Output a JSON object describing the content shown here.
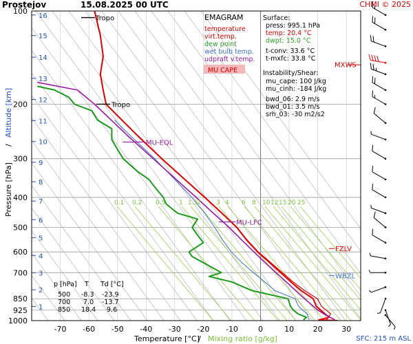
{
  "header": {
    "station": "Prostejov",
    "datetime": "15.08.2025 00 UTC",
    "credit": "CHMI © 2025"
  },
  "axes": {
    "xlabel_temp": "Temperature [°C]",
    "xlabel_sep": "/",
    "xlabel_mix": "Mixing ratio [g/kg]",
    "ylabel_pres": "Pressure [hPa]",
    "ylabel_sep": "/",
    "ylabel_alt": "Altitude [km]",
    "sfc_note": "SFC: 215 m ASL"
  },
  "legend": {
    "title": "EMAGRAM",
    "items": [
      {
        "label": "temperature",
        "color": "#e00000"
      },
      {
        "label": "virt.temp.",
        "color": "#e00000"
      },
      {
        "label": "dew point",
        "color": "#2a9d2a"
      },
      {
        "label": "wet bulb temp.",
        "color": "#3c6fd0"
      },
      {
        "label": "udpraft v.temp.",
        "color": "#9b18a3"
      }
    ],
    "mu_cape_label": "MU CAPE"
  },
  "info": {
    "surface_title": "Surface:",
    "press": "press: 995.1 hPa",
    "temp": "temp: 20.4 °C",
    "dwpt": "dwpt: 15.0 °C",
    "tconv": "t-conv: 33.6 °C",
    "tmxfc": "t-mxfc: 33.8 °C",
    "instab_title": "Instability/Shear:",
    "mu_cape": "mu_cape: 100 J/kg",
    "mu_cinh": "mu_cinh: -184 J/kg",
    "bwd_06": "bwd_06: 2.9 m/s",
    "bwd_01": "bwd_01: 3.5 m/s",
    "srh_03": "srh_03: -30 m2/s2"
  },
  "level_table": {
    "headers": [
      "p [hPa]",
      "T",
      "Td [°C]"
    ],
    "rows": [
      [
        "500",
        "-8.3",
        "-23.9"
      ],
      [
        "700",
        "7.0",
        "-13.7"
      ],
      [
        "850",
        "18.4",
        "9.6"
      ]
    ]
  },
  "markers": {
    "tropo_upper": "Tropo",
    "tropo_lower": "Tropo",
    "mu_eql": "MU-EQL",
    "mu_lfc": "MU-LFC",
    "mxws": "MXWS",
    "fzlv": "FZLV",
    "wbzl": "WBZL"
  },
  "colors": {
    "temperature": "#e00000",
    "dewpoint": "#1a9a1a",
    "wetbulb": "#3c6fd0",
    "parcel": "#9b18a3",
    "mixing": "#9ccf4a",
    "isotherm": "#b5b5b5",
    "altitude": "#1f4fc0"
  },
  "chart_data": {
    "type": "line",
    "xlabel": "Temperature [°C] / Mixing ratio [g/kg]",
    "ylabel": "Pressure [hPa] / Altitude [km]",
    "x_ticks": [
      -70,
      -60,
      -50,
      -40,
      -30,
      -20,
      -10,
      0,
      10,
      20,
      30
    ],
    "x_range": [
      -80,
      35
    ],
    "y_scale": "log",
    "y_range": [
      1000,
      100
    ],
    "y_ticks": [
      100,
      200,
      300,
      400,
      500,
      600,
      700,
      850,
      925,
      1000
    ],
    "altitude_ticks_km": [
      1,
      2,
      3,
      4,
      5,
      6,
      7,
      8,
      9,
      10,
      11,
      12,
      13,
      14,
      15,
      16
    ],
    "altitude_tick_pressures": [
      900,
      795,
      701,
      616,
      540,
      472,
      411,
      356,
      308,
      264,
      226,
      193,
      165,
      141,
      120,
      103
    ],
    "mixing_ratio_labels": [
      "0.1",
      "0.2",
      "0.5",
      "1",
      "1.5",
      "2",
      "3",
      "4",
      "6",
      "8",
      "10",
      "12",
      "15",
      "20",
      "25"
    ],
    "mixing_ratio_values": [
      0.1,
      0.2,
      0.5,
      1,
      1.5,
      2,
      3,
      4,
      6,
      8,
      10,
      12,
      15,
      20,
      25
    ],
    "series": [
      {
        "name": "temperature",
        "points": [
          [
            1000,
            27
          ],
          [
            995,
            20.4
          ],
          [
            975,
            24
          ],
          [
            950,
            22.5
          ],
          [
            925,
            21
          ],
          [
            900,
            19.5
          ],
          [
            850,
            18.4
          ],
          [
            800,
            14.2
          ],
          [
            750,
            10.6
          ],
          [
            700,
            7.0
          ],
          [
            650,
            3.2
          ],
          [
            600,
            -1
          ],
          [
            550,
            -4.8
          ],
          [
            500,
            -8.3
          ],
          [
            450,
            -13.5
          ],
          [
            400,
            -19.5
          ],
          [
            350,
            -26.5
          ],
          [
            300,
            -34.5
          ],
          [
            250,
            -43.5
          ],
          [
            200,
            -54
          ],
          [
            180,
            -55
          ],
          [
            160,
            -56
          ],
          [
            140,
            -55
          ],
          [
            120,
            -56
          ],
          [
            100,
            -58
          ]
        ]
      },
      {
        "name": "virt.temp.",
        "points": [
          [
            995,
            23
          ],
          [
            950,
            24.5
          ],
          [
            925,
            23
          ],
          [
            900,
            21.3
          ],
          [
            850,
            19.9
          ],
          [
            800,
            15.4
          ],
          [
            750,
            11.4
          ],
          [
            700,
            7.6
          ],
          [
            650,
            3.6
          ],
          [
            600,
            -0.8
          ],
          [
            550,
            -4.6
          ],
          [
            500,
            -8.2
          ],
          [
            450,
            -13.4
          ],
          [
            400,
            -19.4
          ],
          [
            350,
            -26.4
          ],
          [
            300,
            -34.4
          ],
          [
            250,
            -43.4
          ],
          [
            200,
            -54
          ],
          [
            180,
            -55
          ],
          [
            160,
            -56
          ],
          [
            140,
            -55
          ],
          [
            120,
            -56
          ],
          [
            100,
            -58
          ]
        ]
      },
      {
        "name": "dew point",
        "points": [
          [
            995,
            15
          ],
          [
            975,
            16
          ],
          [
            950,
            13
          ],
          [
            925,
            11.5
          ],
          [
            900,
            10.5
          ],
          [
            850,
            9.6
          ],
          [
            800,
            -3
          ],
          [
            750,
            -10
          ],
          [
            720,
            -18
          ],
          [
            700,
            -13.7
          ],
          [
            650,
            -20
          ],
          [
            620,
            -24
          ],
          [
            600,
            -25
          ],
          [
            560,
            -20
          ],
          [
            530,
            -22
          ],
          [
            500,
            -23.9
          ],
          [
            470,
            -22
          ],
          [
            450,
            -29
          ],
          [
            420,
            -33
          ],
          [
            400,
            -34
          ],
          [
            370,
            -37
          ],
          [
            350,
            -39
          ],
          [
            330,
            -43
          ],
          [
            300,
            -48
          ],
          [
            280,
            -50
          ],
          [
            260,
            -52
          ],
          [
            240,
            -52
          ],
          [
            225,
            -57
          ],
          [
            210,
            -59
          ],
          [
            200,
            -65
          ],
          [
            190,
            -67
          ],
          [
            180,
            -72
          ],
          [
            175,
            -78
          ]
        ]
      },
      {
        "name": "wet bulb temp.",
        "points": [
          [
            995,
            17
          ],
          [
            950,
            16.2
          ],
          [
            925,
            14.7
          ],
          [
            900,
            13.3
          ],
          [
            850,
            12.1
          ],
          [
            800,
            5
          ],
          [
            750,
            1.5
          ],
          [
            700,
            -2.5
          ],
          [
            650,
            -6.5
          ],
          [
            600,
            -10.2
          ],
          [
            550,
            -13.2
          ],
          [
            500,
            -16
          ],
          [
            450,
            -19.5
          ],
          [
            400,
            -24
          ],
          [
            350,
            -30
          ],
          [
            300,
            -37
          ],
          [
            250,
            -46
          ],
          [
            225,
            -51
          ]
        ]
      },
      {
        "name": "udpraft v.temp.",
        "points": [
          [
            995,
            26
          ],
          [
            950,
            22
          ],
          [
            925,
            20
          ],
          [
            900,
            18.5
          ],
          [
            850,
            15.4
          ],
          [
            800,
            12.3
          ],
          [
            750,
            9.0
          ],
          [
            700,
            5.4
          ],
          [
            650,
            1.6
          ],
          [
            600,
            -2.3
          ],
          [
            550,
            -6.5
          ],
          [
            500,
            -11
          ],
          [
            450,
            -16.5
          ],
          [
            400,
            -22.5
          ],
          [
            350,
            -29.5
          ],
          [
            300,
            -37.5
          ],
          [
            250,
            -47
          ],
          [
            200,
            -58
          ],
          [
            180,
            -64
          ],
          [
            170,
            -78
          ]
        ]
      }
    ],
    "levels": {
      "tropopause_hpa": [
        105,
        200
      ],
      "mu_eql_hpa": 265,
      "mu_lfc_hpa": 480,
      "fzlv_hpa": 585,
      "wbzl_hpa": 715,
      "mxws_hpa": 147
    },
    "wind_barbs": [
      {
        "p": 960,
        "dir": 140,
        "spd": 5
      },
      {
        "p": 925,
        "dir": 160,
        "spd": 5
      },
      {
        "p": 850,
        "dir": 200,
        "spd": 5
      },
      {
        "p": 780,
        "dir": 250,
        "spd": 5
      },
      {
        "p": 700,
        "dir": 270,
        "spd": 5
      },
      {
        "p": 630,
        "dir": 280,
        "spd": 5
      },
      {
        "p": 560,
        "dir": 300,
        "spd": 10
      },
      {
        "p": 500,
        "dir": 310,
        "spd": 10
      },
      {
        "p": 450,
        "dir": 290,
        "spd": 5
      },
      {
        "p": 400,
        "dir": 300,
        "spd": 10
      },
      {
        "p": 350,
        "dir": 300,
        "spd": 10
      },
      {
        "p": 300,
        "dir": 300,
        "spd": 10
      },
      {
        "p": 260,
        "dir": 290,
        "spd": 5
      },
      {
        "p": 230,
        "dir": 310,
        "spd": 10
      },
      {
        "p": 200,
        "dir": 300,
        "spd": 15
      },
      {
        "p": 180,
        "dir": 300,
        "spd": 20
      },
      {
        "p": 160,
        "dir": 290,
        "spd": 25
      },
      {
        "p": 147,
        "dir": 280,
        "spd": 40
      },
      {
        "p": 130,
        "dir": 290,
        "spd": 20
      },
      {
        "p": 115,
        "dir": 300,
        "spd": 20
      },
      {
        "p": 103,
        "dir": 300,
        "spd": 15
      }
    ]
  }
}
